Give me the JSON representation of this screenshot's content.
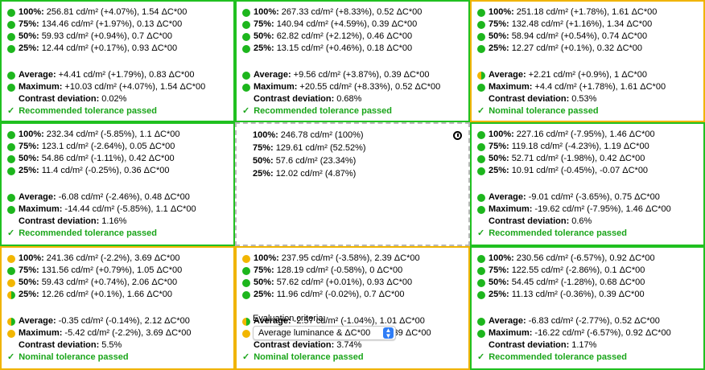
{
  "cells": [
    {
      "border": "green",
      "rows": [
        {
          "dot": "green",
          "label": "100%:",
          "value": "256.81 cd/m² (+4.07%), 1.54 ΔC*00"
        },
        {
          "dot": "green",
          "label": "75%:",
          "value": "134.46 cd/m² (+1.97%), 0.13 ΔC*00"
        },
        {
          "dot": "green",
          "label": "50%:",
          "value": "59.93 cd/m² (+0.94%), 0.7 ΔC*00"
        },
        {
          "dot": "green",
          "label": "25%:",
          "value": "12.44 cd/m² (+0.17%), 0.93 ΔC*00"
        }
      ],
      "average": {
        "dot": "green",
        "label": "Average:",
        "value": "+4.41 cd/m² (+1.79%), 0.83 ΔC*00"
      },
      "maximum": {
        "dot": "green",
        "label": "Maximum:",
        "value": "+10.03 cd/m² (+4.07%), 1.54 ΔC*00"
      },
      "contrast": {
        "label": "Contrast deviation:",
        "value": "0.02%"
      },
      "result": "Recommended tolerance passed"
    },
    {
      "border": "green",
      "rows": [
        {
          "dot": "green",
          "label": "100%:",
          "value": "267.33 cd/m² (+8.33%), 0.52 ΔC*00"
        },
        {
          "dot": "green",
          "label": "75%:",
          "value": "140.94 cd/m² (+4.59%), 0.39 ΔC*00"
        },
        {
          "dot": "green",
          "label": "50%:",
          "value": "62.82 cd/m² (+2.12%), 0.46 ΔC*00"
        },
        {
          "dot": "green",
          "label": "25%:",
          "value": "13.15 cd/m² (+0.46%), 0.18 ΔC*00"
        }
      ],
      "average": {
        "dot": "green",
        "label": "Average:",
        "value": "+9.56 cd/m² (+3.87%), 0.39 ΔC*00"
      },
      "maximum": {
        "dot": "green",
        "label": "Maximum:",
        "value": "+20.55 cd/m² (+8.33%), 0.52 ΔC*00"
      },
      "contrast": {
        "label": "Contrast deviation:",
        "value": "0.68%"
      },
      "result": "Recommended tolerance passed"
    },
    {
      "border": "yellow",
      "rows": [
        {
          "dot": "green",
          "label": "100%:",
          "value": "251.18 cd/m² (+1.78%), 1.61 ΔC*00"
        },
        {
          "dot": "green",
          "label": "75%:",
          "value": "132.48 cd/m² (+1.16%), 1.34 ΔC*00"
        },
        {
          "dot": "green",
          "label": "50%:",
          "value": "58.94 cd/m² (+0.54%), 0.74 ΔC*00"
        },
        {
          "dot": "green",
          "label": "25%:",
          "value": "12.27 cd/m² (+0.1%), 0.32 ΔC*00"
        }
      ],
      "average": {
        "dot": "half",
        "label": "Average:",
        "value": "+2.21 cd/m² (+0.9%), 1 ΔC*00"
      },
      "maximum": {
        "dot": "green",
        "label": "Maximum:",
        "value": "+4.4 cd/m² (+1.78%), 1.61 ΔC*00"
      },
      "contrast": {
        "label": "Contrast deviation:",
        "value": "0.53%"
      },
      "result": "Nominal tolerance passed"
    },
    {
      "border": "green",
      "rows": [
        {
          "dot": "green",
          "label": "100%:",
          "value": "232.34 cd/m² (-5.85%), 1.1 ΔC*00"
        },
        {
          "dot": "green",
          "label": "75%:",
          "value": "123.1 cd/m² (-2.64%), 0.05 ΔC*00"
        },
        {
          "dot": "green",
          "label": "50%:",
          "value": "54.86 cd/m² (-1.11%), 0.42 ΔC*00"
        },
        {
          "dot": "green",
          "label": "25%:",
          "value": "11.4 cd/m² (-0.25%), 0.36 ΔC*00"
        }
      ],
      "average": {
        "dot": "green",
        "label": "Average:",
        "value": "-6.08 cd/m² (-2.46%), 0.48 ΔC*00"
      },
      "maximum": {
        "dot": "green",
        "label": "Maximum:",
        "value": "-14.44 cd/m² (-5.85%), 1.1 ΔC*00"
      },
      "contrast": {
        "label": "Contrast deviation:",
        "value": "1.16%"
      },
      "result": "Recommended tolerance passed"
    },
    {
      "border": "green",
      "rows": [
        {
          "dot": "green",
          "label": "100%:",
          "value": "227.16 cd/m² (-7.95%), 1.46 ΔC*00"
        },
        {
          "dot": "green",
          "label": "75%:",
          "value": "119.18 cd/m² (-4.23%), 1.19 ΔC*00"
        },
        {
          "dot": "green",
          "label": "50%:",
          "value": "52.71 cd/m² (-1.98%), 0.42 ΔC*00"
        },
        {
          "dot": "green",
          "label": "25%:",
          "value": "10.91 cd/m² (-0.45%), -0.07 ΔC*00"
        }
      ],
      "average": {
        "dot": "green",
        "label": "Average:",
        "value": "-9.01 cd/m² (-3.65%), 0.75 ΔC*00"
      },
      "maximum": {
        "dot": "green",
        "label": "Maximum:",
        "value": "-19.62 cd/m² (-7.95%), 1.46 ΔC*00"
      },
      "contrast": {
        "label": "Contrast deviation:",
        "value": "0.6%"
      },
      "result": "Recommended tolerance passed"
    },
    {
      "border": "yellow",
      "rows": [
        {
          "dot": "yellow",
          "label": "100%:",
          "value": "241.36 cd/m² (-2.2%), 3.69 ΔC*00"
        },
        {
          "dot": "green",
          "label": "75%:",
          "value": "131.56 cd/m² (+0.79%), 1.05 ΔC*00"
        },
        {
          "dot": "yellow",
          "label": "50%:",
          "value": "59.43 cd/m² (+0.74%), 2.06 ΔC*00"
        },
        {
          "dot": "half",
          "label": "25%:",
          "value": "12.26 cd/m² (+0.1%), 1.66 ΔC*00"
        }
      ],
      "average": {
        "dot": "half",
        "label": "Average:",
        "value": "-0.35 cd/m² (-0.14%), 2.12 ΔC*00"
      },
      "maximum": {
        "dot": "yellow",
        "label": "Maximum:",
        "value": "-5.42 cd/m² (-2.2%), 3.69 ΔC*00"
      },
      "contrast": {
        "label": "Contrast deviation:",
        "value": "5.5%"
      },
      "result": "Nominal tolerance passed"
    },
    {
      "border": "yellow",
      "rows": [
        {
          "dot": "yellow",
          "label": "100%:",
          "value": "237.95 cd/m² (-3.58%), 2.39 ΔC*00"
        },
        {
          "dot": "green",
          "label": "75%:",
          "value": "128.19 cd/m² (-0.58%), 0 ΔC*00"
        },
        {
          "dot": "green",
          "label": "50%:",
          "value": "57.62 cd/m² (+0.01%), 0.93 ΔC*00"
        },
        {
          "dot": "green",
          "label": "25%:",
          "value": "11.96 cd/m² (-0.02%), 0.7 ΔC*00"
        }
      ],
      "average": {
        "dot": "half",
        "label": "Average:",
        "value": "-2.57 cd/m² (-1.04%), 1.01 ΔC*00"
      },
      "maximum": {
        "dot": "yellow",
        "label": "Maximum:",
        "value": "-8.83 cd/m² (-3.58%), 2.39 ΔC*00"
      },
      "contrast": {
        "label": "Contrast deviation:",
        "value": "3.74%"
      },
      "result": "Nominal tolerance passed"
    },
    {
      "border": "green",
      "rows": [
        {
          "dot": "green",
          "label": "100%:",
          "value": "230.56 cd/m² (-6.57%), 0.92 ΔC*00"
        },
        {
          "dot": "green",
          "label": "75%:",
          "value": "122.55 cd/m² (-2.86%), 0.1 ΔC*00"
        },
        {
          "dot": "green",
          "label": "50%:",
          "value": "54.45 cd/m² (-1.28%), 0.68 ΔC*00"
        },
        {
          "dot": "green",
          "label": "25%:",
          "value": "11.13 cd/m² (-0.36%), 0.39 ΔC*00"
        }
      ],
      "average": {
        "dot": "green",
        "label": "Average:",
        "value": "-6.83 cd/m² (-2.77%), 0.52 ΔC*00"
      },
      "maximum": {
        "dot": "green",
        "label": "Maximum:",
        "value": "-16.22 cd/m² (-6.57%), 0.92 ΔC*00"
      },
      "contrast": {
        "label": "Contrast deviation:",
        "value": "1.17%"
      },
      "result": "Recommended tolerance passed"
    }
  ],
  "center": {
    "rows": [
      {
        "label": "100%:",
        "value": "246.78 cd/m² (100%)"
      },
      {
        "label": "75%:",
        "value": "129.61 cd/m² (52.52%)"
      },
      {
        "label": "50%:",
        "value": "57.6 cd/m² (23.34%)"
      },
      {
        "label": "25%:",
        "value": "12.02 cd/m² (4.87%)"
      }
    ],
    "eval_label": "Evaluation criteria:",
    "eval_value": "Average luminance & ΔC*00",
    "info_icon": "info-icon"
  },
  "colors": {
    "green": "#1db61d",
    "yellow": "#f2b600",
    "border_green": "#20c020",
    "border_yellow": "#f0b400",
    "pass_text": "#1aa51a"
  }
}
